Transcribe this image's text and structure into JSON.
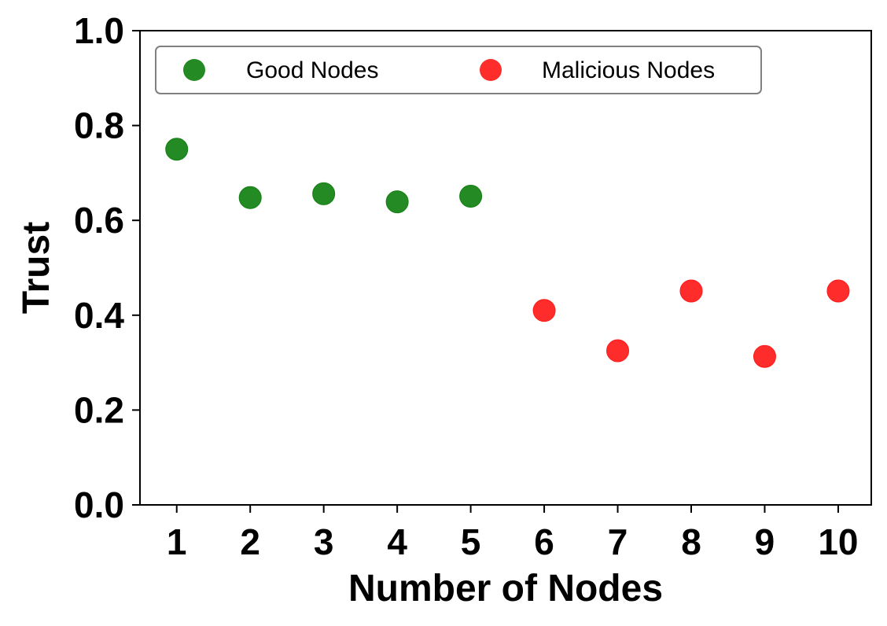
{
  "chart_data": {
    "type": "scatter",
    "title": "",
    "xlabel": "Number of Nodes",
    "ylabel": "Trust",
    "xlim": [
      0.5,
      10.45
    ],
    "ylim": [
      0,
      1.0
    ],
    "xticks": [
      "1",
      "2",
      "3",
      "4",
      "5",
      "6",
      "7",
      "8",
      "9",
      "10"
    ],
    "yticks": [
      "0.0",
      "0.2",
      "0.4",
      "0.6",
      "0.8",
      "1.0"
    ],
    "grid": false,
    "legend_position": "top",
    "series": [
      {
        "name": "Good Nodes",
        "color": "#118011",
        "points": [
          {
            "x": 1,
            "y": 0.75
          },
          {
            "x": 2,
            "y": 0.648
          },
          {
            "x": 3,
            "y": 0.656
          },
          {
            "x": 4,
            "y": 0.639
          },
          {
            "x": 5,
            "y": 0.651
          }
        ]
      },
      {
        "name": "Malicious Nodes",
        "color": "#ff1a1a",
        "points": [
          {
            "x": 6,
            "y": 0.41
          },
          {
            "x": 7,
            "y": 0.325
          },
          {
            "x": 8,
            "y": 0.451
          },
          {
            "x": 9,
            "y": 0.313
          },
          {
            "x": 10,
            "y": 0.451
          }
        ]
      }
    ]
  }
}
